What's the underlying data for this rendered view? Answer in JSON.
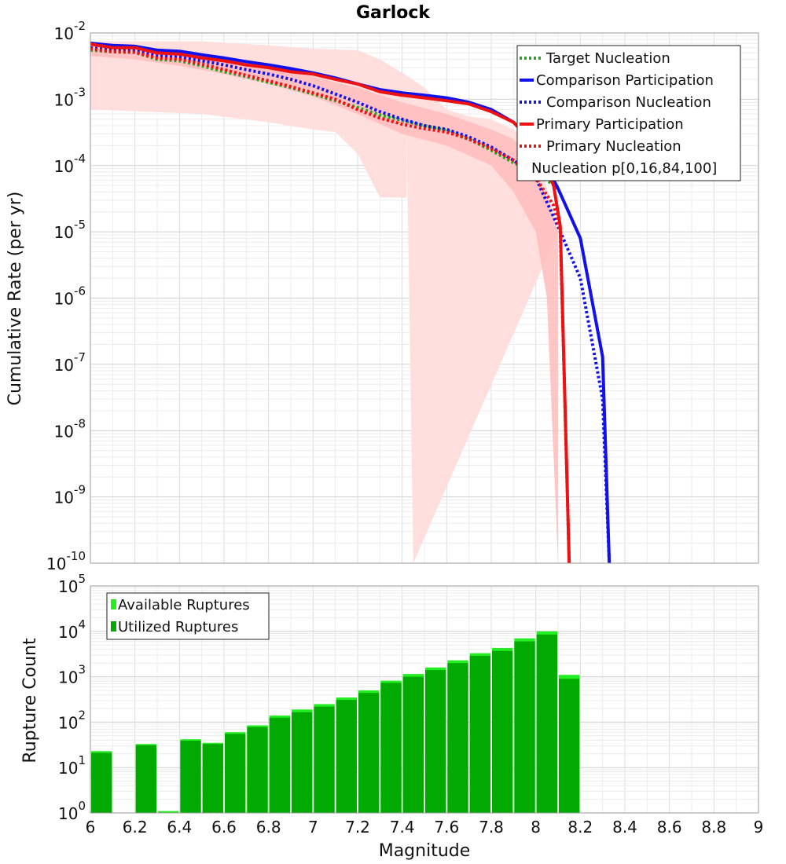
{
  "chart_data": [
    {
      "type": "line",
      "title": "Garlock",
      "xlabel": "",
      "ylabel": "Cumulative Rate (per yr)",
      "yscale": "log",
      "xlim": [
        6,
        9
      ],
      "ylim": [
        1e-10,
        0.01
      ],
      "y_tick_exponents": [
        -10,
        -9,
        -8,
        -7,
        -6,
        -5,
        -4,
        -3,
        -2
      ],
      "grid": true,
      "legend_position": "top-right",
      "band": {
        "name": "Nucleation p[0,16,84,100]",
        "color": "#ffb6b6",
        "outer_x": [
          6.0,
          6.2,
          6.3,
          6.5,
          6.8,
          7.0,
          7.2,
          7.3,
          7.4,
          7.5,
          7.6,
          7.7,
          7.8,
          7.9,
          8.0,
          8.1
        ],
        "outer_hi": [
          0.0075,
          0.0075,
          0.0075,
          0.0075,
          0.0065,
          0.0058,
          0.0055,
          0.004,
          0.0025,
          0.0015,
          0.0007,
          0.00055,
          0.0005,
          0.00035,
          0.0002,
          1e-05
        ],
        "outer_lo_x": [
          6.0,
          6.5,
          6.8,
          7.0,
          7.1,
          7.2,
          7.3,
          7.42,
          7.42,
          7.45
        ],
        "outer_lo": [
          0.0007,
          0.0006,
          0.00045,
          0.00035,
          0.00032,
          0.00015,
          3.3e-05,
          3.3e-05,
          0.00035,
          1e-10
        ],
        "inner_x": [
          6.0,
          6.2,
          6.4,
          6.6,
          6.8,
          7.0,
          7.2,
          7.4,
          7.6,
          7.8,
          7.9,
          8.0,
          8.05,
          8.1
        ],
        "inner_hi": [
          0.0065,
          0.006,
          0.005,
          0.004,
          0.003,
          0.0022,
          0.0015,
          0.0009,
          0.0006,
          0.00035,
          0.00025,
          0.0001,
          3e-05,
          1e-05
        ],
        "inner_lo": [
          0.0045,
          0.004,
          0.0032,
          0.0024,
          0.0017,
          0.0011,
          0.0006,
          0.0003,
          0.0002,
          0.0001,
          4e-05,
          1e-05,
          1e-06,
          1e-10
        ]
      },
      "series": [
        {
          "name": "Target Nucleation",
          "color": "#22aa22",
          "style": "dotted",
          "x": [
            6.0,
            6.1,
            6.2,
            6.3,
            6.4,
            6.5,
            6.6,
            6.7,
            6.8,
            6.9,
            7.0,
            7.1,
            7.2,
            7.3,
            7.4,
            7.5,
            7.6,
            7.7,
            7.8,
            7.9,
            8.0,
            8.1
          ],
          "y": [
            0.0055,
            0.0052,
            0.0051,
            0.004,
            0.0038,
            0.0032,
            0.0026,
            0.0022,
            0.0018,
            0.0015,
            0.0012,
            0.00095,
            0.00075,
            0.00058,
            0.00048,
            0.0004,
            0.00034,
            0.00025,
            0.00017,
            0.00011,
            8e-05,
            4.5e-05
          ]
        },
        {
          "name": "Comparison Participation",
          "color": "#1111ee",
          "style": "solid",
          "x": [
            6.0,
            6.1,
            6.2,
            6.3,
            6.4,
            6.5,
            6.6,
            6.7,
            6.8,
            6.9,
            7.0,
            7.1,
            7.2,
            7.3,
            7.4,
            7.5,
            7.6,
            7.7,
            7.8,
            7.9,
            8.0,
            8.1,
            8.2,
            8.3,
            8.33
          ],
          "y": [
            0.007,
            0.0065,
            0.0063,
            0.0055,
            0.0053,
            0.0047,
            0.0042,
            0.0037,
            0.0033,
            0.0029,
            0.0025,
            0.0021,
            0.0017,
            0.0014,
            0.00125,
            0.00115,
            0.00105,
            0.0009,
            0.0007,
            0.00045,
            0.0002,
            4.5e-05,
            8e-06,
            1.3e-07,
            1e-10
          ]
        },
        {
          "name": "Comparison Nucleation",
          "color": "#1111ee",
          "style": "dotted",
          "x": [
            6.0,
            6.1,
            6.2,
            6.3,
            6.4,
            6.5,
            6.6,
            6.7,
            6.8,
            6.9,
            7.0,
            7.1,
            7.2,
            7.3,
            7.4,
            7.5,
            7.6,
            7.7,
            7.8,
            7.9,
            8.0,
            8.1,
            8.2,
            8.3,
            8.33
          ],
          "y": [
            0.006,
            0.0055,
            0.0054,
            0.0045,
            0.0043,
            0.0038,
            0.0033,
            0.0028,
            0.0024,
            0.002,
            0.0016,
            0.0012,
            0.0009,
            0.00065,
            0.0005,
            0.0004,
            0.00035,
            0.00027,
            0.00019,
            0.00012,
            6.5e-05,
            1.2e-05,
            2e-06,
            3e-08,
            1e-10
          ]
        },
        {
          "name": "Primary Participation",
          "color": "#ee1111",
          "style": "solid",
          "x": [
            6.0,
            6.1,
            6.2,
            6.3,
            6.4,
            6.5,
            6.6,
            6.7,
            6.8,
            6.9,
            7.0,
            7.1,
            7.2,
            7.3,
            7.4,
            7.5,
            7.6,
            7.7,
            7.8,
            7.9,
            8.0,
            8.08,
            8.11,
            8.15
          ],
          "y": [
            0.0068,
            0.006,
            0.006,
            0.005,
            0.0048,
            0.0042,
            0.0038,
            0.0033,
            0.003,
            0.0026,
            0.0024,
            0.002,
            0.0017,
            0.0013,
            0.00115,
            0.00105,
            0.00095,
            0.00085,
            0.00065,
            0.00045,
            0.0002,
            5e-05,
            1.2e-05,
            1e-10
          ]
        },
        {
          "name": "Primary Nucleation",
          "color": "#ee1111",
          "style": "dotted",
          "x": [
            6.0,
            6.1,
            6.2,
            6.3,
            6.4,
            6.5,
            6.6,
            6.7,
            6.8,
            6.9,
            7.0,
            7.1,
            7.2,
            7.3,
            7.4,
            7.5,
            7.6,
            7.7,
            7.8,
            7.9,
            8.0,
            8.08,
            8.11,
            8.15
          ],
          "y": [
            0.0058,
            0.0052,
            0.0051,
            0.0042,
            0.004,
            0.0034,
            0.0028,
            0.0023,
            0.0019,
            0.00155,
            0.00125,
            0.001,
            0.0007,
            0.00052,
            0.00042,
            0.00036,
            0.00032,
            0.00025,
            0.00018,
            0.00012,
            6.5e-05,
            2.5e-05,
            1e-05,
            1e-10
          ]
        }
      ],
      "legend": [
        "Target Nucleation",
        "Comparison Participation",
        "Comparison Nucleation",
        "Primary Participation",
        "Primary Nucleation",
        "Nucleation p[0,16,84,100]"
      ]
    },
    {
      "type": "bar",
      "title": "",
      "xlabel": "Magnitude",
      "ylabel": "Rupture Count",
      "yscale": "log",
      "xlim": [
        6,
        9
      ],
      "ylim": [
        1,
        100000
      ],
      "y_tick_exponents": [
        0,
        1,
        2,
        3,
        4,
        5
      ],
      "x_ticks": [
        "6",
        "6.2",
        "6.4",
        "6.6",
        "6.8",
        "7",
        "7.2",
        "7.4",
        "7.6",
        "7.8",
        "8",
        "8.2",
        "8.4",
        "8.6",
        "8.8",
        "9"
      ],
      "bin_width": 0.1,
      "legend_position": "top-left",
      "series": [
        {
          "name": "Available Ruptures",
          "color": "#22ee22",
          "x": [
            6.05,
            6.15,
            6.25,
            6.35,
            6.45,
            6.55,
            6.65,
            6.75,
            6.85,
            6.95,
            7.05,
            7.15,
            7.25,
            7.35,
            7.45,
            7.55,
            7.65,
            7.75,
            7.85,
            7.95,
            8.05,
            8.15
          ],
          "values": [
            23,
            0,
            33,
            1.1,
            42,
            35,
            60,
            85,
            140,
            190,
            250,
            350,
            500,
            820,
            1150,
            1600,
            2300,
            3300,
            4300,
            7000,
            10000,
            1100
          ]
        },
        {
          "name": "Utilized Ruptures",
          "color": "#00aa00",
          "x": [
            6.05,
            6.15,
            6.25,
            6.35,
            6.45,
            6.55,
            6.65,
            6.75,
            6.85,
            6.95,
            7.05,
            7.15,
            7.25,
            7.35,
            7.45,
            7.55,
            7.65,
            7.75,
            7.85,
            7.95,
            8.05,
            8.15
          ],
          "values": [
            21,
            0,
            31,
            1.0,
            39,
            33,
            55,
            78,
            125,
            165,
            220,
            310,
            440,
            730,
            1000,
            1400,
            2000,
            2900,
            3700,
            6000,
            8500,
            900
          ]
        }
      ],
      "legend": [
        "Available Ruptures",
        "Utilized Ruptures"
      ]
    }
  ]
}
